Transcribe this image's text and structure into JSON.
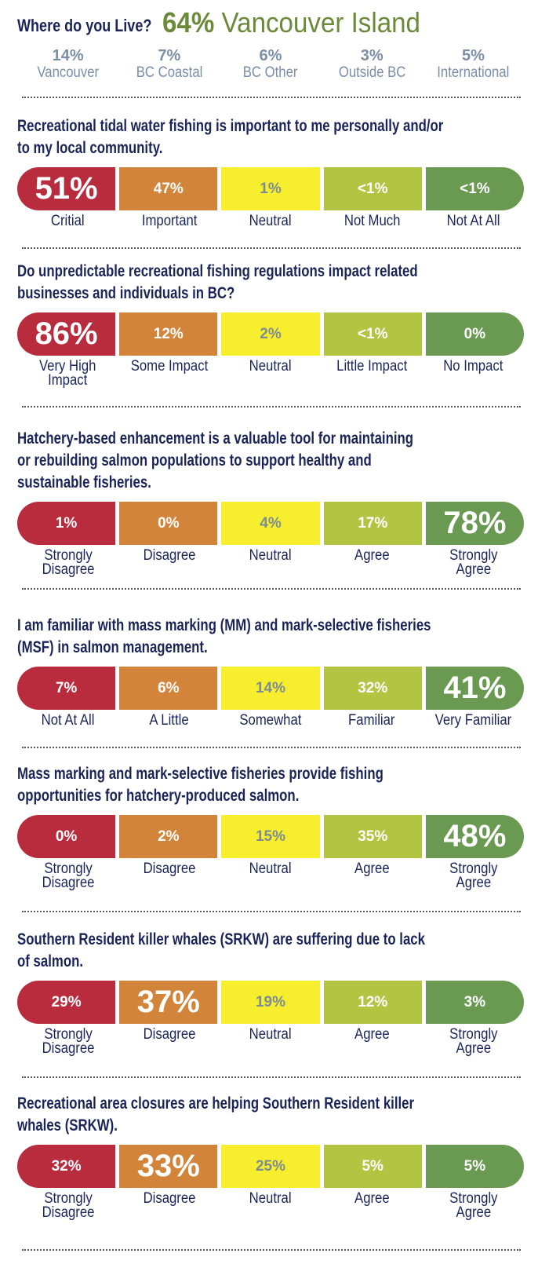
{
  "chart_data": {
    "type": "table",
    "colors": [
      "#b82c3e",
      "#d2843a",
      "#f7ef2e",
      "#b1c543",
      "#6a9a52"
    ],
    "residence": {
      "question": "Where do you Live?",
      "main": {
        "value": "64%",
        "label": "Vancouver Island"
      },
      "others": [
        {
          "value": "14%",
          "label": "Vancouver"
        },
        {
          "value": "7%",
          "label": "BC Coastal"
        },
        {
          "value": "6%",
          "label": "BC Other"
        },
        {
          "value": "3%",
          "label": "Outside BC"
        },
        {
          "value": "5%",
          "label": "International"
        }
      ]
    },
    "questions": [
      {
        "lines": [
          "Recreational tidal water fishing is important to me personally and/or",
          "to my local community."
        ],
        "values": [
          "51%",
          "47%",
          "1%",
          "<1%",
          "<1%"
        ],
        "highlight": 0,
        "labels": [
          "Critial",
          "Important",
          "Neutral",
          "Not Much",
          "Not At All"
        ]
      },
      {
        "lines": [
          "Do unpredictable recreational fishing regulations impact related",
          "businesses and individuals in BC?"
        ],
        "values": [
          "86%",
          "12%",
          "2%",
          "<1%",
          "0%"
        ],
        "highlight": 0,
        "labels": [
          "Very High\nImpact",
          "Some Impact",
          "Neutral",
          "Little Impact",
          "No Impact"
        ]
      },
      {
        "lines": [
          "Hatchery-based enhancement is a valuable tool for maintaining",
          "or rebuilding salmon populations to support healthy and",
          "sustainable fisheries."
        ],
        "values": [
          "1%",
          "0%",
          "4%",
          "17%",
          "78%"
        ],
        "highlight": 4,
        "labels": [
          "Strongly\nDisagree",
          "Disagree",
          "Neutral",
          "Agree",
          "Strongly\nAgree"
        ]
      },
      {
        "lines": [
          "I am familiar with mass marking (MM) and mark-selective fisheries",
          "(MSF) in salmon management."
        ],
        "values": [
          "7%",
          "6%",
          "14%",
          "32%",
          "41%"
        ],
        "highlight": 4,
        "labels": [
          "Not At All",
          "A Little",
          "Somewhat",
          "Familiar",
          "Very Familiar"
        ]
      },
      {
        "lines": [
          "Mass marking and mark-selective fisheries provide fishing",
          "opportunities for hatchery-produced salmon."
        ],
        "values": [
          "0%",
          "2%",
          "15%",
          "35%",
          "48%"
        ],
        "highlight": 4,
        "labels": [
          "Strongly\nDisagree",
          "Disagree",
          "Neutral",
          "Agree",
          "Strongly\nAgree"
        ]
      },
      {
        "lines": [
          "Southern Resident killer whales (SRKW) are suffering due to lack",
          "of salmon."
        ],
        "values": [
          "29%",
          "37%",
          "19%",
          "12%",
          "3%"
        ],
        "highlight": 1,
        "labels": [
          "Strongly\nDisagree",
          "Disagree",
          "Neutral",
          "Agree",
          "Strongly\nAgree"
        ]
      },
      {
        "lines": [
          "Recreational area closures are helping Southern Resident killer",
          "whales (SRKW)."
        ],
        "values": [
          "32%",
          "33%",
          "25%",
          "5%",
          "5%"
        ],
        "highlight": 1,
        "labels": [
          "Strongly\nDisagree",
          "Disagree",
          "Neutral",
          "Agree",
          "Strongly\nAgree"
        ]
      }
    ]
  }
}
